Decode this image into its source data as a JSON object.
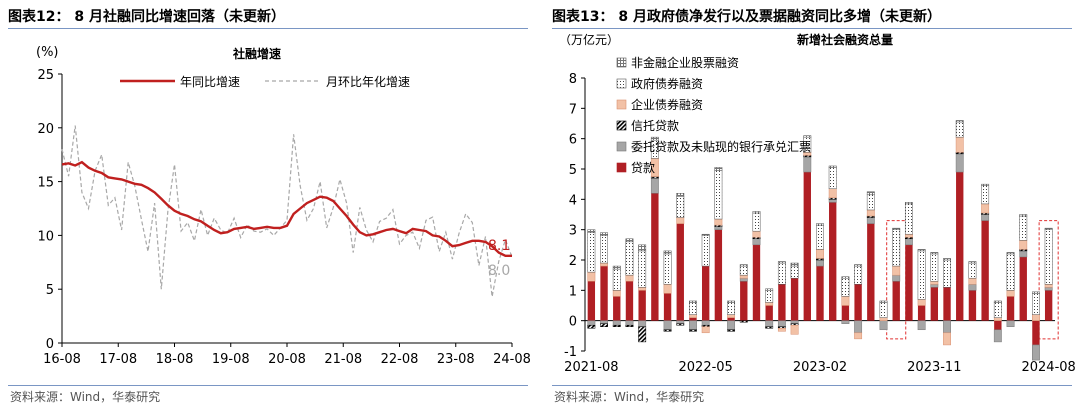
{
  "left": {
    "title": "图表12：  8 月社融同比增速回落（未更新）",
    "source": "资料来源：Wind，华泰研究",
    "chart_data": {
      "type": "line",
      "title": "社融增速",
      "ylabel": "(%)",
      "ylim": [
        0,
        25
      ],
      "yticks": [
        0,
        5,
        10,
        15,
        20,
        25
      ],
      "x_range": [
        2016.583,
        2024.75
      ],
      "xticks": [
        "16-08",
        "17-08",
        "18-08",
        "19-08",
        "20-08",
        "21-08",
        "22-08",
        "23-08",
        "24-08"
      ],
      "grid": false,
      "legend_position": "top",
      "series": [
        {
          "name": "年同比增速",
          "color": "#c0201f",
          "values": [
            16.6,
            16.7,
            16.5,
            16.8,
            16.3,
            16.0,
            15.8,
            15.4,
            15.3,
            15.2,
            15.0,
            14.8,
            14.7,
            14.4,
            14.0,
            13.4,
            12.8,
            12.3,
            12.0,
            11.8,
            11.5,
            11.3,
            10.9,
            10.5,
            10.2,
            10.3,
            10.6,
            10.7,
            10.8,
            10.6,
            10.7,
            10.8,
            10.7,
            10.7,
            10.9,
            12.0,
            12.5,
            13.0,
            13.3,
            13.6,
            13.5,
            13.2,
            12.5,
            11.8,
            11.0,
            10.3,
            10.0,
            10.1,
            10.3,
            10.5,
            10.6,
            10.4,
            10.2,
            10.6,
            10.5,
            10.4,
            10.0,
            9.9,
            9.5,
            9.0,
            9.1,
            9.3,
            9.5,
            9.5,
            9.4,
            9.0,
            8.4,
            8.1,
            8.1
          ]
        },
        {
          "name": "月环比年化增速",
          "color": "#a8a8a8",
          "values": [
            18.0,
            15.5,
            20.2,
            14.0,
            12.5,
            16.0,
            17.5,
            12.8,
            13.5,
            10.5,
            16.8,
            14.6,
            11.5,
            8.5,
            13.0,
            5.0,
            12.3,
            16.6,
            10.4,
            11.2,
            9.5,
            12.4,
            10.0,
            11.6,
            10.5,
            10.2,
            11.6,
            9.8,
            11.0,
            10.4,
            10.3,
            10.6,
            10.0,
            10.7,
            11.4,
            19.4,
            14.6,
            11.4,
            12.5,
            15.0,
            10.7,
            12.6,
            15.2,
            13.0,
            8.4,
            12.6,
            10.5,
            9.4,
            11.3,
            11.6,
            12.4,
            9.2,
            10.0,
            10.3,
            8.8,
            11.4,
            11.7,
            8.5,
            10.3,
            7.8,
            10.2,
            12.0,
            11.2,
            7.2,
            9.9,
            4.3,
            7.6,
            9.6,
            8.0
          ]
        }
      ],
      "annotations": [
        {
          "text": "8.1",
          "series": "年同比增速",
          "value": 8.1,
          "color": "#c0201f"
        },
        {
          "text": "8.0",
          "series": "月环比年化增速",
          "value": 8.0,
          "color": "#a8a8a8"
        }
      ]
    }
  },
  "right": {
    "title": "图表13：  8 月政府债净发行以及票据融资同比多增（未更新）",
    "source": "资料来源：Wind，华泰研究",
    "chart_data": {
      "type": "bar",
      "stacked": true,
      "title": "新增社会融资总量",
      "ylabel": "（万亿元）",
      "ylim": [
        -1,
        8
      ],
      "yticks": [
        -1,
        0,
        1,
        2,
        3,
        4,
        5,
        6,
        7,
        8
      ],
      "categories": [
        "2021-08",
        "2021-09",
        "2021-10",
        "2021-11",
        "2021-12",
        "2022-01",
        "2022-02",
        "2022-03",
        "2022-04",
        "2022-05",
        "2022-06",
        "2022-07",
        "2022-08",
        "2022-09",
        "2022-10",
        "2022-11",
        "2022-12",
        "2023-01",
        "2023-02",
        "2023-03",
        "2023-04",
        "2023-05",
        "2023-06",
        "2023-07",
        "2023-08",
        "2023-09",
        "2023-10",
        "2023-11",
        "2023-12",
        "2024-01",
        "2024-02",
        "2024-03",
        "2024-04",
        "2024-05",
        "2024-06",
        "2024-07",
        "2024-08"
      ],
      "xticks": [
        "2021-08",
        "2022-05",
        "2023-02",
        "2023-11",
        "2024-08"
      ],
      "highlighted_categories": [
        "2023-08",
        "2024-08"
      ],
      "legend_position": "top-left",
      "series": [
        {
          "name": "贷款",
          "color": "#b01f24",
          "values": [
            1.3,
            1.8,
            0.8,
            1.3,
            1.0,
            4.2,
            0.9,
            3.2,
            0.1,
            1.8,
            3.0,
            0.1,
            1.3,
            2.5,
            0.5,
            1.2,
            1.4,
            4.9,
            1.8,
            3.9,
            0.5,
            1.2,
            3.2,
            0.0,
            1.3,
            2.5,
            0.5,
            1.1,
            1.1,
            4.9,
            1.0,
            3.3,
            -0.3,
            0.8,
            2.1,
            -0.8,
            1.0
          ]
        },
        {
          "name": "委托贷款及未贴现的银行承兑汇票",
          "color": "#a6a6a6",
          "values": [
            -0.15,
            -0.1,
            -0.15,
            -0.15,
            -0.2,
            0.5,
            -0.3,
            -0.1,
            -0.3,
            -0.15,
            0.1,
            -0.3,
            0.1,
            0.2,
            -0.2,
            -0.2,
            -0.1,
            0.5,
            0.2,
            0.1,
            -0.1,
            -0.4,
            0.2,
            -0.3,
            0.2,
            0.2,
            -0.3,
            0.1,
            -0.4,
            0.6,
            0.2,
            0.2,
            -0.4,
            -0.2,
            0.2,
            -0.5,
            0.1
          ]
        },
        {
          "name": "信托贷款",
          "color": "#000000",
          "values": [
            -0.1,
            -0.1,
            -0.05,
            -0.05,
            -0.5,
            0.05,
            -0.05,
            -0.05,
            -0.05,
            -0.05,
            0.05,
            -0.05,
            -0.05,
            0.05,
            -0.05,
            -0.05,
            -0.05,
            0.05,
            0.05,
            0.05,
            0.0,
            0.0,
            0.05,
            0.0,
            0.0,
            0.05,
            0.0,
            0.0,
            0.0,
            0.05,
            0.0,
            0.05,
            0.0,
            0.0,
            0.05,
            0.0,
            0.0
          ]
        },
        {
          "name": "企业债券融资",
          "color": "#f2c1a6",
          "values": [
            0.3,
            0.1,
            0.2,
            0.2,
            0.1,
            0.6,
            0.3,
            0.2,
            0.1,
            -0.2,
            0.2,
            0.1,
            0.1,
            0.2,
            0.1,
            -0.1,
            -0.3,
            0.1,
            0.3,
            0.3,
            0.3,
            -0.2,
            0.2,
            0.1,
            0.3,
            0.1,
            0.2,
            0.1,
            -0.4,
            0.5,
            0.2,
            0.3,
            0.1,
            0.2,
            0.3,
            0.2,
            0.1
          ]
        },
        {
          "name": "政府债券融资",
          "color": "#ffffff",
          "values": [
            1.3,
            0.9,
            0.7,
            1.1,
            1.2,
            0.6,
            1.0,
            0.7,
            0.4,
            1.0,
            1.6,
            0.4,
            0.3,
            0.6,
            0.4,
            0.7,
            0.4,
            0.5,
            0.8,
            0.7,
            0.6,
            0.6,
            0.5,
            0.5,
            1.2,
            1.0,
            1.6,
            0.9,
            0.9,
            0.5,
            0.5,
            0.6,
            0.5,
            1.2,
            0.8,
            0.7,
            1.8
          ]
        },
        {
          "name": "非金融企业股票融资",
          "color": "#ffffff",
          "values": [
            0.1,
            0.1,
            0.1,
            0.1,
            0.2,
            0.1,
            0.1,
            0.1,
            0.05,
            0.05,
            0.1,
            0.05,
            0.05,
            0.05,
            0.05,
            0.05,
            0.1,
            0.05,
            0.05,
            0.05,
            0.05,
            0.05,
            0.1,
            0.05,
            0.05,
            0.05,
            0.05,
            0.05,
            0.05,
            0.05,
            0.05,
            0.05,
            0.05,
            0.05,
            0.05,
            0.05,
            0.05
          ]
        }
      ]
    }
  }
}
